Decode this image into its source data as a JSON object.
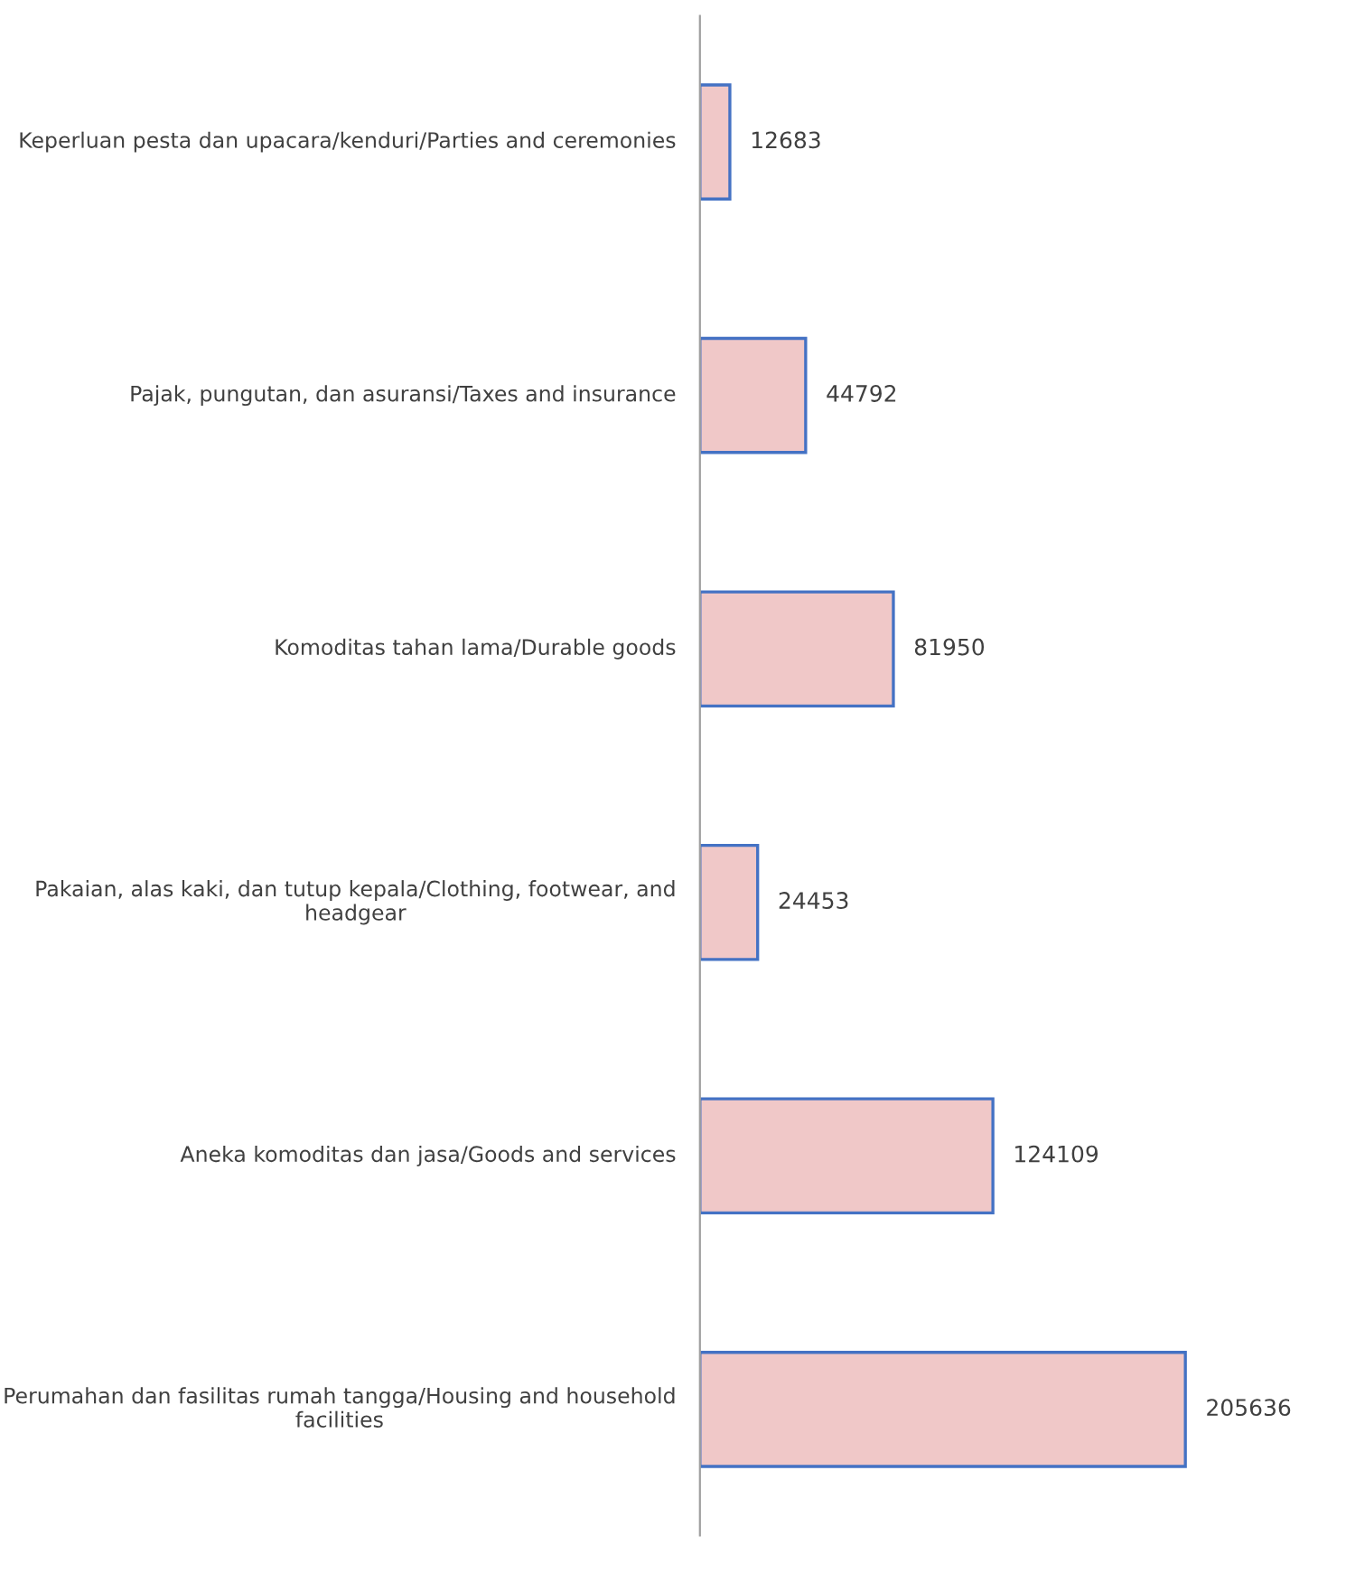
{
  "chart_data": {
    "type": "bar",
    "orientation": "horizontal",
    "categories": [
      "Keperluan pesta dan upacara/kenduri/Parties and ceremonies",
      "Pajak, pungutan, dan asuransi/Taxes and insurance",
      "Komoditas tahan lama/Durable goods",
      "Pakaian, alas kaki, dan tutup kepala/Clothing, footwear, and headgear",
      "Aneka komoditas dan jasa/Goods and services",
      "Perumahan dan fasilitas rumah tangga/Housing and household facilities"
    ],
    "values": [
      12683,
      44792,
      81950,
      24453,
      124109,
      205636
    ],
    "color": "#f0c8c8",
    "data_labels": true,
    "grid": false,
    "legend": false
  }
}
